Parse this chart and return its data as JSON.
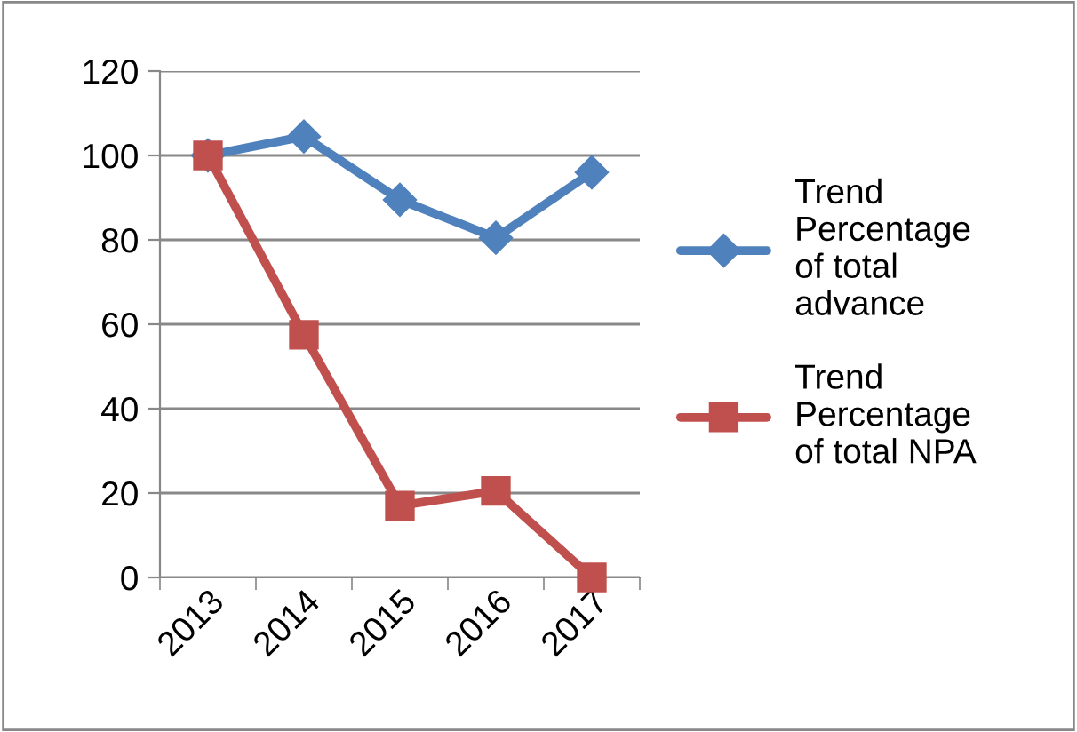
{
  "chart_data": {
    "type": "line",
    "categories": [
      "2013",
      "2014",
      "2015",
      "2016",
      "2017"
    ],
    "series": [
      {
        "name": "Trend\nPercentage\nof total\nadvance",
        "color": "#4f81bd",
        "marker": "diamond",
        "values": [
          100,
          104.5,
          89.5,
          80.5,
          96
        ]
      },
      {
        "name": "Trend\nPercentage\nof total NPA",
        "color": "#c0504d",
        "marker": "square",
        "values": [
          100,
          57.5,
          17,
          20.5,
          0
        ]
      }
    ],
    "ylim": [
      0,
      120
    ],
    "yticks": [
      0,
      20,
      40,
      60,
      80,
      100,
      120
    ],
    "grid": "y",
    "legend": "right",
    "line_style": "solid"
  }
}
